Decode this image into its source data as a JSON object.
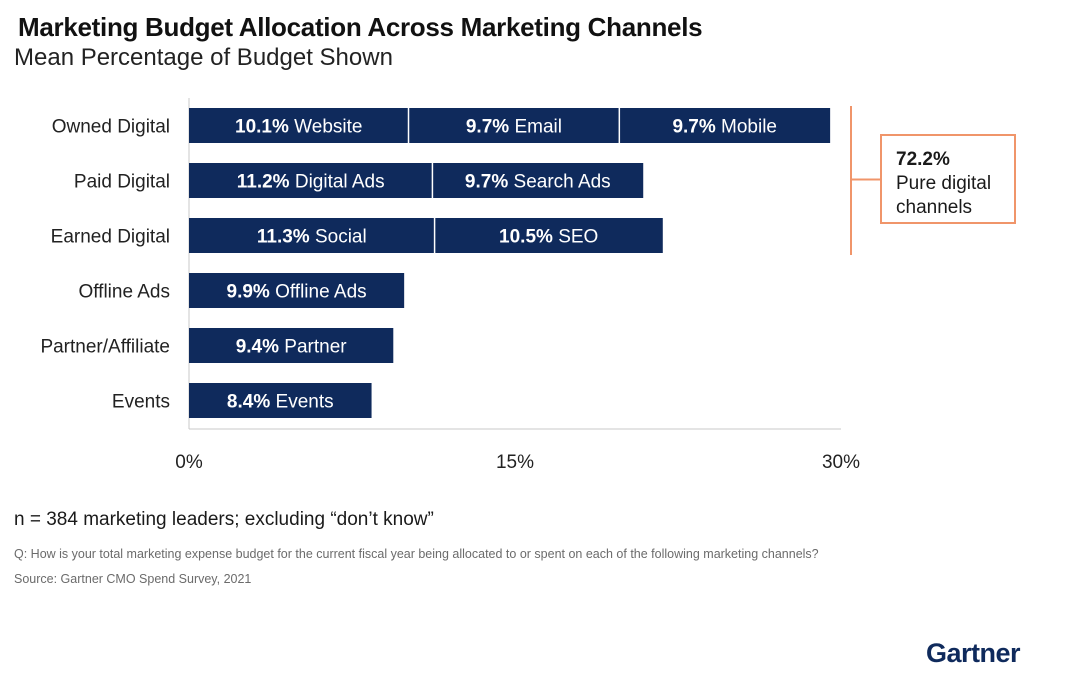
{
  "title": "Marketing Budget Allocation Across Marketing Channels",
  "subtitle": "Mean Percentage of Budget Shown",
  "chart_data": {
    "type": "bar",
    "orientation": "horizontal",
    "stacked": true,
    "categories": [
      "Owned Digital",
      "Paid Digital",
      "Earned Digital",
      "Offline Ads",
      "Partner/Affiliate",
      "Events"
    ],
    "bars": [
      {
        "category": "Owned Digital",
        "segments": [
          {
            "value": 10.1,
            "pct_label": "10.1%",
            "name": "Website"
          },
          {
            "value": 9.7,
            "pct_label": "9.7%",
            "name": "Email"
          },
          {
            "value": 9.7,
            "pct_label": "9.7%",
            "name": "Mobile"
          }
        ]
      },
      {
        "category": "Paid Digital",
        "segments": [
          {
            "value": 11.2,
            "pct_label": "11.2%",
            "name": "Digital Ads"
          },
          {
            "value": 9.7,
            "pct_label": "9.7%",
            "name": "Search Ads"
          }
        ]
      },
      {
        "category": "Earned Digital",
        "segments": [
          {
            "value": 11.3,
            "pct_label": "11.3%",
            "name": "Social"
          },
          {
            "value": 10.5,
            "pct_label": "10.5%",
            "name": "SEO"
          }
        ]
      },
      {
        "category": "Offline Ads",
        "segments": [
          {
            "value": 9.9,
            "pct_label": "9.9%",
            "name": "Offline Ads"
          }
        ]
      },
      {
        "category": "Partner/Affiliate",
        "segments": [
          {
            "value": 9.4,
            "pct_label": "9.4%",
            "name": "Partner"
          }
        ]
      },
      {
        "category": "Events",
        "segments": [
          {
            "value": 8.4,
            "pct_label": "8.4%",
            "name": "Events"
          }
        ]
      }
    ],
    "xlim": [
      0,
      30
    ],
    "xticks": [
      0,
      15,
      30
    ],
    "xtick_labels": [
      "0%",
      "15%",
      "30%"
    ],
    "grid": false,
    "bar_color": "#0f2a5c",
    "annotation": {
      "value": "72.2%",
      "text": "Pure digital channels",
      "bracket_rows": [
        "Owned Digital",
        "Paid Digital",
        "Earned Digital"
      ],
      "color": "#f0956a"
    }
  },
  "footnote": "n = 384 marketing leaders; excluding “don’t know”",
  "question": "Q: How is your total marketing expense budget for the current fiscal year being allocated to or spent on each of the following marketing channels?",
  "source": "Source: Gartner CMO Spend Survey, 2021",
  "logo_text": "Gartner"
}
